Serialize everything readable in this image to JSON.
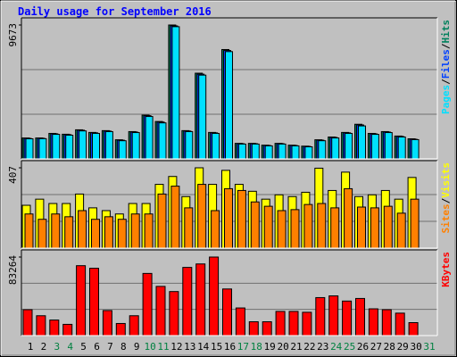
{
  "chart_data": {
    "type": "bar",
    "title": "Daily usage for September 2016",
    "categories": [
      "1",
      "2",
      "3",
      "4",
      "5",
      "6",
      "7",
      "8",
      "9",
      "10",
      "11",
      "12",
      "13",
      "14",
      "15",
      "16",
      "17",
      "18",
      "19",
      "20",
      "21",
      "22",
      "23",
      "24",
      "25",
      "26",
      "27",
      "28",
      "29",
      "30",
      "31"
    ],
    "label_colors": [
      "#000000",
      "#000000",
      "#008040",
      "#008040",
      "#000000",
      "#000000",
      "#000000",
      "#000000",
      "#000000",
      "#008040",
      "#008040",
      "#000000",
      "#000000",
      "#000000",
      "#000000",
      "#000000",
      "#008040",
      "#008040",
      "#000000",
      "#000000",
      "#000000",
      "#000000",
      "#000000",
      "#008040",
      "#008040",
      "#000000",
      "#000000",
      "#000000",
      "#000000",
      "#000000",
      "#008040"
    ],
    "legend_separator": "/",
    "panels": [
      {
        "ylim": [
          0,
          9673
        ],
        "yticks": [
          9673
        ],
        "series": [
          {
            "name": "Hits",
            "color": "#00805c",
            "values": [
              1510,
              1510,
              1840,
              1780,
              2100,
              1910,
              2040,
              1380,
              1970,
              3160,
              2700,
              9673,
              2040,
              6190,
              1910,
              7900,
              1120,
              1120,
              990,
              1120,
              990,
              920,
              1380,
              1580,
              1910,
              2500,
              1840,
              1970,
              1650,
              1450,
              null
            ]
          },
          {
            "name": "Files",
            "color": "#0040ff",
            "values": [
              1480,
              1490,
              1810,
              1750,
              2070,
              1880,
              2010,
              1350,
              1940,
              3120,
              2660,
              9610,
              2010,
              6120,
              1880,
              7830,
              1100,
              1100,
              970,
              1100,
              970,
              900,
              1350,
              1550,
              1880,
              2450,
              1810,
              1940,
              1620,
              1420,
              null
            ]
          },
          {
            "name": "Pages",
            "color": "#00e0ff",
            "values": [
              1450,
              1460,
              1770,
              1710,
              2020,
              1840,
              1970,
              1310,
              1900,
              3060,
              2600,
              9550,
              1970,
              6050,
              1840,
              7750,
              1070,
              1070,
              940,
              1070,
              940,
              870,
              1310,
              1510,
              1840,
              2380,
              1770,
              1900,
              1580,
              1390,
              null
            ]
          }
        ]
      },
      {
        "ylim": [
          0,
          407
        ],
        "yticks": [
          407
        ],
        "series": [
          {
            "name": "Visits",
            "color": "#ffff00",
            "values": [
              217,
              248,
              226,
              226,
              274,
              204,
              190,
              173,
              226,
              226,
              323,
              363,
              261,
              407,
              323,
              394,
              323,
              288,
              248,
              270,
              261,
              283,
              405,
              292,
              385,
              261,
              270,
              292,
              248,
              358,
              null
            ]
          },
          {
            "name": "Sites",
            "color": "#ff8000",
            "values": [
              173,
              146,
              173,
              159,
              190,
              146,
              159,
              146,
              173,
              173,
              274,
              314,
              204,
              323,
              190,
              301,
              292,
              234,
              212,
              190,
              195,
              221,
              226,
              204,
              301,
              208,
              204,
              212,
              177,
              248,
              null
            ]
          }
        ]
      },
      {
        "ylim": [
          0,
          83264
        ],
        "yticks": [
          83264
        ],
        "series": [
          {
            "name": "KBytes",
            "color": "#ff0000",
            "values": [
              27450,
              21040,
              16470,
              11900,
              74110,
              71370,
              26530,
              12810,
              21040,
              65880,
              52150,
              46660,
              72280,
              75940,
              83264,
              49410,
              29280,
              14640,
              14640,
              25620,
              25620,
              24700,
              40260,
              42090,
              36600,
              39340,
              28360,
              27450,
              23790,
              13720,
              null
            ]
          }
        ]
      }
    ]
  }
}
